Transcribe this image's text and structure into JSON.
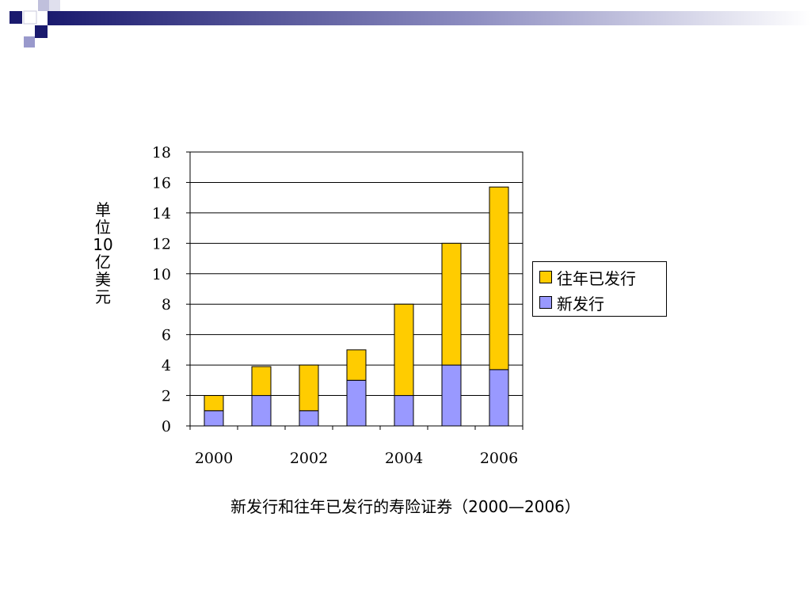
{
  "chart_data": {
    "type": "bar",
    "stacked": true,
    "categories": [
      "2000",
      "2001",
      "2002",
      "2003",
      "2004",
      "2005",
      "2006"
    ],
    "x_tick_labels": [
      "2000",
      "2002",
      "2004",
      "2006"
    ],
    "series": [
      {
        "name": "新发行",
        "values": [
          1,
          2,
          1,
          3,
          2,
          4,
          3.7
        ],
        "color": "#9999ff"
      },
      {
        "name": "往年已发行",
        "values": [
          1,
          1.9,
          3,
          2,
          6,
          8,
          12
        ],
        "color": "#ffcc00"
      }
    ],
    "legend_order": [
      "往年已发行",
      "新发行"
    ],
    "ylabel": "单位10亿美元",
    "ylabel_lines": [
      "单",
      "位",
      "10",
      "亿",
      "美",
      "元"
    ],
    "title": "新发行和往年已发行的寿险证券（2000—2006）",
    "ylim": [
      0,
      18
    ],
    "yticks": [
      0,
      2,
      4,
      6,
      8,
      10,
      12,
      14,
      16,
      18
    ],
    "grid": true,
    "legend_position": "right"
  },
  "colors": {
    "deco_dark": "#1a1a6e",
    "deco_light": "#9999cc"
  }
}
